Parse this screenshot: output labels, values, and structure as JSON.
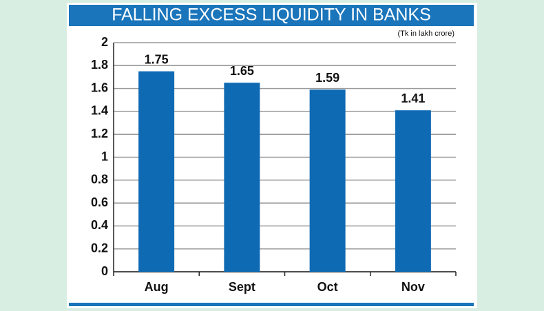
{
  "chart_data": {
    "type": "bar",
    "title": "FALLING EXCESS LIQUIDITY IN BANKS",
    "subtitle": "(Tk in lakh crore)",
    "categories": [
      "Aug",
      "Sept",
      "Oct",
      "Nov"
    ],
    "values": [
      1.75,
      1.65,
      1.59,
      1.41
    ],
    "color": "#0f6ab4",
    "ylim": [
      0,
      2
    ],
    "yticks": [
      0,
      0.2,
      0.4,
      0.6,
      0.8,
      1,
      1.2,
      1.4,
      1.6,
      1.8,
      2
    ],
    "grid": true
  }
}
